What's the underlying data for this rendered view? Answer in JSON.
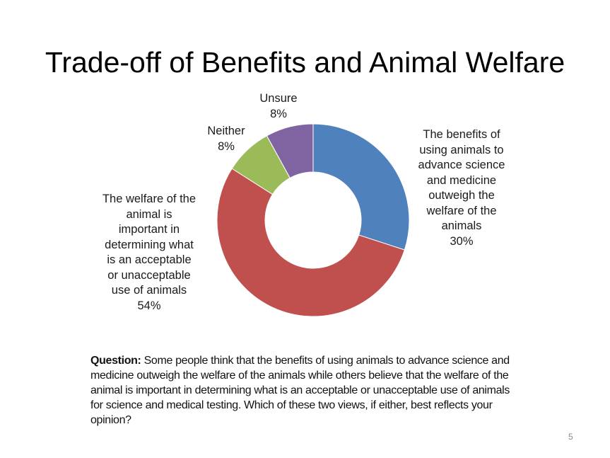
{
  "slide": {
    "title": "Trade-off of Benefits and Animal Welfare",
    "question_label": "Question:",
    "question_text": " Some people think that the benefits of using animals to advance science and medicine outweigh the welfare of the animals while others believe that the welfare of the animal is important in determining what is an acceptable or unacceptable use of animals for science and medical testing. Which of these two views, if either, best reflects your opinion?",
    "page_number": "5"
  },
  "labels": {
    "benefits": "The benefits of\nusing animals to\nadvance science\nand medicine\noutweigh the\nwelfare of the\nanimals\n30%",
    "welfare": "The welfare of the\nanimal is\nimportant in\ndetermining what\nis an acceptable\nor unacceptable\nuse of animals\n54%",
    "neither": "Neither\n8%",
    "unsure": "Unsure\n8%"
  },
  "chart_data": {
    "type": "pie",
    "variant": "donut",
    "title": "Trade-off of Benefits and Animal Welfare",
    "categories": [
      "The benefits of using animals to advance science and medicine outweigh the welfare of the animals",
      "The welfare of the animal is important in determining what is an acceptable or unacceptable use of animals",
      "Neither",
      "Unsure"
    ],
    "values": [
      30,
      54,
      8,
      8
    ],
    "unit": "%",
    "colors": [
      "#4F81BD",
      "#C0504D",
      "#9BBB59",
      "#8064A2"
    ],
    "start_angle_deg": 0,
    "direction": "clockwise",
    "legend": "none (data labels outside)"
  }
}
